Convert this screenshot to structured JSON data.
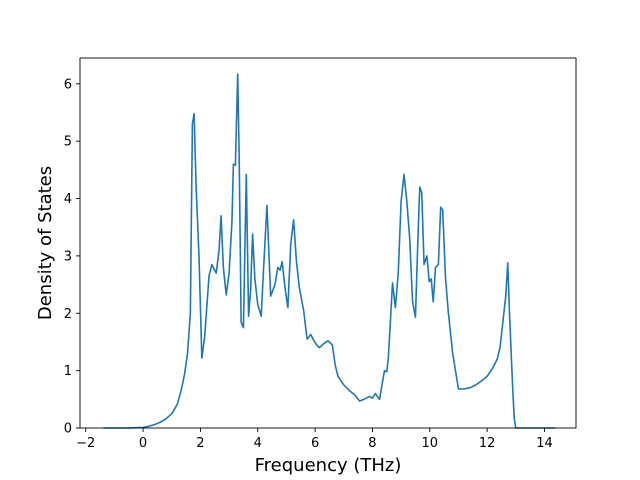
{
  "chart_data": {
    "type": "line",
    "title": "",
    "xlabel": "Frequency (THz)",
    "ylabel": "Density of States",
    "xlim": [
      -2.2,
      15.1
    ],
    "ylim": [
      0,
      6.45
    ],
    "grid": false,
    "xticks": [
      -2,
      0,
      2,
      4,
      6,
      8,
      10,
      12,
      14
    ],
    "xtick_labels": [
      "−2",
      "0",
      "2",
      "4",
      "6",
      "8",
      "10",
      "12",
      "14"
    ],
    "yticks": [
      0,
      1,
      2,
      3,
      4,
      5,
      6
    ],
    "ytick_labels": [
      "0",
      "1",
      "2",
      "3",
      "4",
      "5",
      "6"
    ],
    "line_color": "#1f77b4",
    "series": [
      {
        "x": [
          -1.35,
          -0.5,
          0,
          0.2,
          0.4,
          0.6,
          0.8,
          1.0,
          1.2,
          1.35,
          1.45,
          1.55,
          1.65,
          1.72,
          1.78,
          1.85,
          1.95,
          2.05,
          2.15,
          2.3,
          2.4,
          2.55,
          2.65,
          2.72,
          2.8,
          2.9,
          3.0,
          3.1,
          3.15,
          3.22,
          3.3,
          3.35,
          3.42,
          3.5,
          3.6,
          3.68,
          3.75,
          3.82,
          3.9,
          4.0,
          4.12,
          4.2,
          4.32,
          4.45,
          4.6,
          4.7,
          4.78,
          4.85,
          4.95,
          5.05,
          5.15,
          5.25,
          5.35,
          5.45,
          5.6,
          5.72,
          5.85,
          5.95,
          6.05,
          6.15,
          6.3,
          6.45,
          6.6,
          6.7,
          6.8,
          7.0,
          7.2,
          7.4,
          7.55,
          7.7,
          7.9,
          8.0,
          8.1,
          8.25,
          8.35,
          8.42,
          8.5,
          8.55,
          8.62,
          8.7,
          8.8,
          8.9,
          9.0,
          9.1,
          9.2,
          9.3,
          9.4,
          9.5,
          9.58,
          9.65,
          9.72,
          9.8,
          9.9,
          9.98,
          10.05,
          10.12,
          10.2,
          10.3,
          10.38,
          10.45,
          10.55,
          10.65,
          10.8,
          11.0,
          11.2,
          11.4,
          11.6,
          11.8,
          12.0,
          12.2,
          12.35,
          12.45,
          12.55,
          12.65,
          12.72,
          12.78,
          12.84,
          12.9,
          12.95,
          13.0,
          13.05,
          13.15,
          13.3,
          13.6,
          14.0,
          14.35
        ],
        "values": [
          0,
          0,
          0.01,
          0.03,
          0.06,
          0.1,
          0.16,
          0.25,
          0.42,
          0.7,
          0.95,
          1.3,
          2.0,
          5.3,
          5.48,
          4.2,
          3.0,
          1.22,
          1.6,
          2.65,
          2.85,
          2.7,
          3.1,
          3.7,
          2.8,
          2.32,
          2.7,
          3.6,
          4.6,
          4.58,
          6.17,
          4.8,
          1.85,
          1.75,
          4.42,
          1.95,
          2.4,
          3.38,
          2.6,
          2.15,
          1.95,
          2.75,
          3.88,
          2.3,
          2.5,
          2.8,
          2.75,
          2.9,
          2.45,
          2.1,
          3.2,
          3.63,
          2.9,
          2.45,
          2.05,
          1.55,
          1.63,
          1.53,
          1.45,
          1.4,
          1.47,
          1.52,
          1.45,
          1.1,
          0.9,
          0.75,
          0.65,
          0.57,
          0.47,
          0.5,
          0.55,
          0.52,
          0.6,
          0.5,
          0.8,
          1.0,
          0.98,
          1.2,
          1.8,
          2.53,
          2.1,
          2.7,
          3.95,
          4.42,
          3.95,
          3.3,
          2.2,
          1.93,
          3.2,
          4.2,
          4.1,
          2.85,
          3.0,
          2.55,
          2.6,
          2.2,
          2.8,
          2.85,
          3.85,
          3.8,
          2.6,
          2.0,
          1.3,
          0.68,
          0.68,
          0.7,
          0.75,
          0.82,
          0.9,
          1.05,
          1.2,
          1.4,
          1.85,
          2.3,
          2.88,
          2.0,
          1.3,
          0.6,
          0.15,
          0,
          0,
          0,
          0,
          0,
          0,
          0
        ]
      }
    ]
  }
}
